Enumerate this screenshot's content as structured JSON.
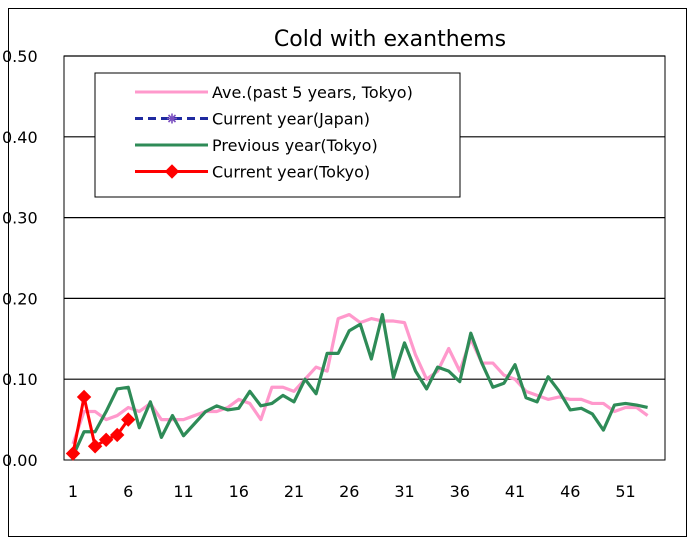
{
  "chart_data": {
    "type": "line",
    "title": "Cold with exanthems",
    "xlabel": "",
    "ylabel": "",
    "xlim": [
      1,
      53
    ],
    "ylim": [
      0,
      0.5
    ],
    "y_ticks": [
      "0.00",
      "0.10",
      "0.20",
      "0.30",
      "0.40",
      "0.50"
    ],
    "x_ticks": [
      "1",
      "6",
      "11",
      "16",
      "21",
      "26",
      "31",
      "36",
      "41",
      "46",
      "51"
    ],
    "grid": "horizontal",
    "legend_position": "top-left",
    "series": [
      {
        "name": "Ave.(past 5 years, Tokyo)",
        "color": "#ff99cc",
        "dash": "solid",
        "marker": "none",
        "x": [
          1,
          2,
          3,
          4,
          5,
          6,
          7,
          8,
          9,
          10,
          11,
          12,
          13,
          14,
          15,
          16,
          17,
          18,
          19,
          20,
          21,
          22,
          23,
          24,
          25,
          26,
          27,
          28,
          29,
          30,
          31,
          32,
          33,
          34,
          35,
          36,
          37,
          38,
          39,
          40,
          41,
          42,
          43,
          44,
          45,
          46,
          47,
          48,
          49,
          50,
          51,
          52,
          53
        ],
        "values": [
          0.02,
          0.06,
          0.06,
          0.05,
          0.055,
          0.065,
          0.06,
          0.07,
          0.05,
          0.05,
          0.05,
          0.055,
          0.06,
          0.06,
          0.065,
          0.075,
          0.07,
          0.05,
          0.09,
          0.09,
          0.085,
          0.1,
          0.115,
          0.11,
          0.175,
          0.18,
          0.17,
          0.175,
          0.172,
          0.172,
          0.17,
          0.13,
          0.1,
          0.11,
          0.138,
          0.11,
          0.15,
          0.12,
          0.12,
          0.105,
          0.1,
          0.085,
          0.08,
          0.075,
          0.078,
          0.075,
          0.075,
          0.07,
          0.07,
          0.06,
          0.065,
          0.065,
          0.055
        ]
      },
      {
        "name": "Current year(Japan)",
        "color": "#1f2aa0",
        "dash": "dashed",
        "marker": "star",
        "x": [],
        "values": []
      },
      {
        "name": "Previous year(Tokyo)",
        "color": "#2e8b57",
        "dash": "solid",
        "marker": "none",
        "x": [
          1,
          2,
          3,
          4,
          5,
          6,
          7,
          8,
          9,
          10,
          11,
          12,
          13,
          14,
          15,
          16,
          17,
          18,
          19,
          20,
          21,
          22,
          23,
          24,
          25,
          26,
          27,
          28,
          29,
          30,
          31,
          32,
          33,
          34,
          35,
          36,
          37,
          38,
          39,
          40,
          41,
          42,
          43,
          44,
          45,
          46,
          47,
          48,
          49,
          50,
          51,
          52,
          53
        ],
        "values": [
          0.005,
          0.035,
          0.035,
          0.06,
          0.088,
          0.09,
          0.04,
          0.072,
          0.028,
          0.055,
          0.03,
          0.045,
          0.06,
          0.067,
          0.062,
          0.064,
          0.085,
          0.067,
          0.07,
          0.08,
          0.072,
          0.1,
          0.082,
          0.132,
          0.132,
          0.16,
          0.168,
          0.125,
          0.18,
          0.102,
          0.145,
          0.11,
          0.088,
          0.115,
          0.11,
          0.097,
          0.157,
          0.12,
          0.09,
          0.095,
          0.118,
          0.077,
          0.072,
          0.103,
          0.085,
          0.062,
          0.064,
          0.057,
          0.037,
          0.068,
          0.07,
          0.068,
          0.065
        ]
      },
      {
        "name": "Current year(Tokyo)",
        "color": "#ff0000",
        "dash": "solid",
        "marker": "diamond",
        "x": [
          1,
          2,
          3,
          4,
          5,
          6
        ],
        "values": [
          0.008,
          0.078,
          0.017,
          0.025,
          0.031,
          0.05
        ]
      }
    ]
  }
}
